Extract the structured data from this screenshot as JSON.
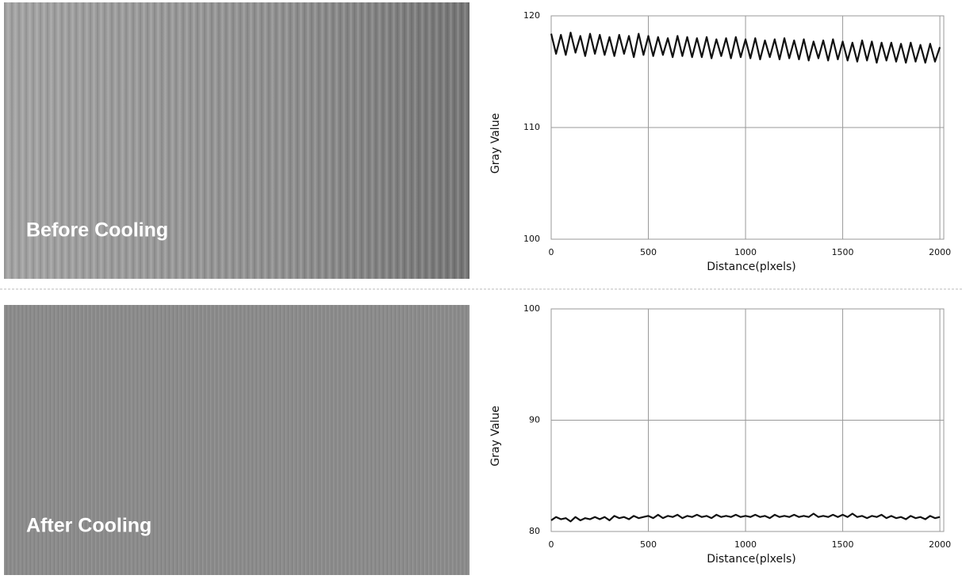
{
  "chart_data": [
    {
      "type": "line",
      "annotation": "Before Cooling",
      "xlabel": "Distance(plxels)",
      "ylabel": "Gray Value",
      "color": "#111111",
      "grid": true,
      "xlim": [
        0,
        2020
      ],
      "xticks": [
        0,
        500,
        1000,
        1500,
        2000
      ],
      "ylim": [
        100,
        120
      ],
      "yticks": [
        100,
        110,
        120
      ],
      "x": [
        0,
        25,
        50,
        75,
        100,
        125,
        150,
        175,
        200,
        225,
        250,
        275,
        300,
        325,
        350,
        375,
        400,
        425,
        450,
        475,
        500,
        525,
        550,
        575,
        600,
        625,
        650,
        675,
        700,
        725,
        750,
        775,
        800,
        825,
        850,
        875,
        900,
        925,
        950,
        975,
        1000,
        1025,
        1050,
        1075,
        1100,
        1125,
        1150,
        1175,
        1200,
        1225,
        1250,
        1275,
        1300,
        1325,
        1350,
        1375,
        1400,
        1425,
        1450,
        1475,
        1500,
        1525,
        1550,
        1575,
        1600,
        1625,
        1650,
        1675,
        1700,
        1725,
        1750,
        1775,
        1800,
        1825,
        1850,
        1875,
        1900,
        1925,
        1950,
        1975,
        2000
      ],
      "values": [
        118.4,
        116.6,
        118.3,
        116.5,
        118.5,
        116.7,
        118.2,
        116.4,
        118.4,
        116.6,
        118.3,
        116.5,
        118.1,
        116.4,
        118.3,
        116.6,
        118.2,
        116.3,
        118.4,
        116.5,
        118.2,
        116.4,
        118.1,
        116.5,
        118.0,
        116.3,
        118.2,
        116.4,
        118.1,
        116.3,
        118.0,
        116.3,
        118.1,
        116.2,
        117.9,
        116.4,
        118.0,
        116.2,
        118.1,
        116.3,
        117.9,
        116.2,
        118.0,
        116.1,
        117.8,
        116.3,
        117.9,
        116.1,
        118.0,
        116.2,
        117.8,
        116.1,
        117.9,
        116.0,
        117.7,
        116.2,
        117.8,
        116.0,
        117.9,
        116.1,
        117.7,
        116.0,
        117.6,
        115.9,
        117.8,
        116.0,
        117.7,
        115.8,
        117.6,
        116.0,
        117.6,
        115.9,
        117.5,
        115.8,
        117.6,
        115.9,
        117.4,
        115.8,
        117.5,
        115.9,
        117.2
      ]
    },
    {
      "type": "line",
      "annotation": "After Cooling",
      "xlabel": "Distance(plxels)",
      "ylabel": "Gray Value",
      "color": "#111111",
      "grid": true,
      "xlim": [
        0,
        2020
      ],
      "xticks": [
        0,
        500,
        1000,
        1500,
        2000
      ],
      "ylim": [
        80,
        100
      ],
      "yticks": [
        80,
        90,
        100
      ],
      "x": [
        0,
        25,
        50,
        75,
        100,
        125,
        150,
        175,
        200,
        225,
        250,
        275,
        300,
        325,
        350,
        375,
        400,
        425,
        450,
        475,
        500,
        525,
        550,
        575,
        600,
        625,
        650,
        675,
        700,
        725,
        750,
        775,
        800,
        825,
        850,
        875,
        900,
        925,
        950,
        975,
        1000,
        1025,
        1050,
        1075,
        1100,
        1125,
        1150,
        1175,
        1200,
        1225,
        1250,
        1275,
        1300,
        1325,
        1350,
        1375,
        1400,
        1425,
        1450,
        1475,
        1500,
        1525,
        1550,
        1575,
        1600,
        1625,
        1650,
        1675,
        1700,
        1725,
        1750,
        1775,
        1800,
        1825,
        1850,
        1875,
        1900,
        1925,
        1950,
        1975,
        2000
      ],
      "values": [
        81.0,
        81.3,
        81.1,
        81.2,
        80.9,
        81.3,
        81.0,
        81.2,
        81.1,
        81.3,
        81.1,
        81.3,
        81.0,
        81.4,
        81.2,
        81.3,
        81.1,
        81.4,
        81.2,
        81.3,
        81.4,
        81.2,
        81.5,
        81.2,
        81.4,
        81.3,
        81.5,
        81.2,
        81.4,
        81.3,
        81.5,
        81.3,
        81.4,
        81.2,
        81.5,
        81.3,
        81.4,
        81.3,
        81.5,
        81.3,
        81.4,
        81.3,
        81.5,
        81.3,
        81.4,
        81.2,
        81.5,
        81.3,
        81.4,
        81.3,
        81.5,
        81.3,
        81.4,
        81.3,
        81.6,
        81.3,
        81.4,
        81.3,
        81.5,
        81.3,
        81.5,
        81.3,
        81.6,
        81.3,
        81.4,
        81.2,
        81.4,
        81.3,
        81.5,
        81.2,
        81.4,
        81.2,
        81.3,
        81.1,
        81.4,
        81.2,
        81.3,
        81.1,
        81.4,
        81.2,
        81.3
      ]
    }
  ]
}
